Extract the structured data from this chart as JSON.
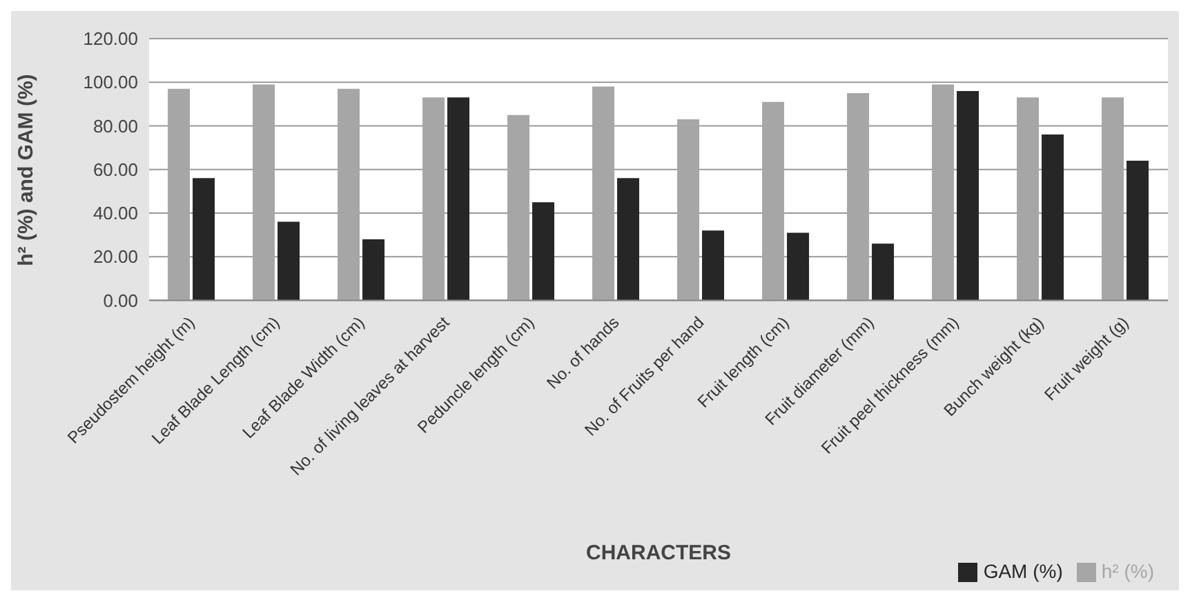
{
  "chart_data": {
    "type": "bar",
    "xlabel": "CHARACTERS",
    "ylabel": "h² (%) and GAM (%)",
    "categories": [
      "Pseudostem height (m)",
      "Leaf Blade Length (cm)",
      "Leaf Blade Width (cm)",
      "No. of living leaves at harvest",
      "Peduncle length (cm)",
      "No. of hands",
      "No. of Fruits per hand",
      "Fruit length (cm)",
      "Fruit diameter (mm)",
      "Fruit peel thickness (mm)",
      "Bunch weight (kg)",
      "Fruit weight (g)"
    ],
    "series": [
      {
        "name": "h² (%)",
        "color": "#a6a6a6",
        "values": [
          97,
          99,
          97,
          93,
          85,
          98,
          83,
          91,
          95,
          99,
          93,
          93
        ]
      },
      {
        "name": "GAM (%)",
        "color": "#262626",
        "values": [
          56,
          36,
          28,
          93,
          45,
          56,
          32,
          31,
          26,
          96,
          76,
          64
        ]
      }
    ],
    "ylim": [
      0,
      120
    ],
    "yticks": [
      {
        "value": 0,
        "label": "0.00"
      },
      {
        "value": 20,
        "label": "20.00"
      },
      {
        "value": 40,
        "label": "40.00"
      },
      {
        "value": 60,
        "label": "60.00"
      },
      {
        "value": 80,
        "label": "80.00"
      },
      {
        "value": 100,
        "label": "100.00"
      },
      {
        "value": 120,
        "label": "120.00"
      }
    ],
    "grid": "y",
    "legend": "bottom right"
  }
}
